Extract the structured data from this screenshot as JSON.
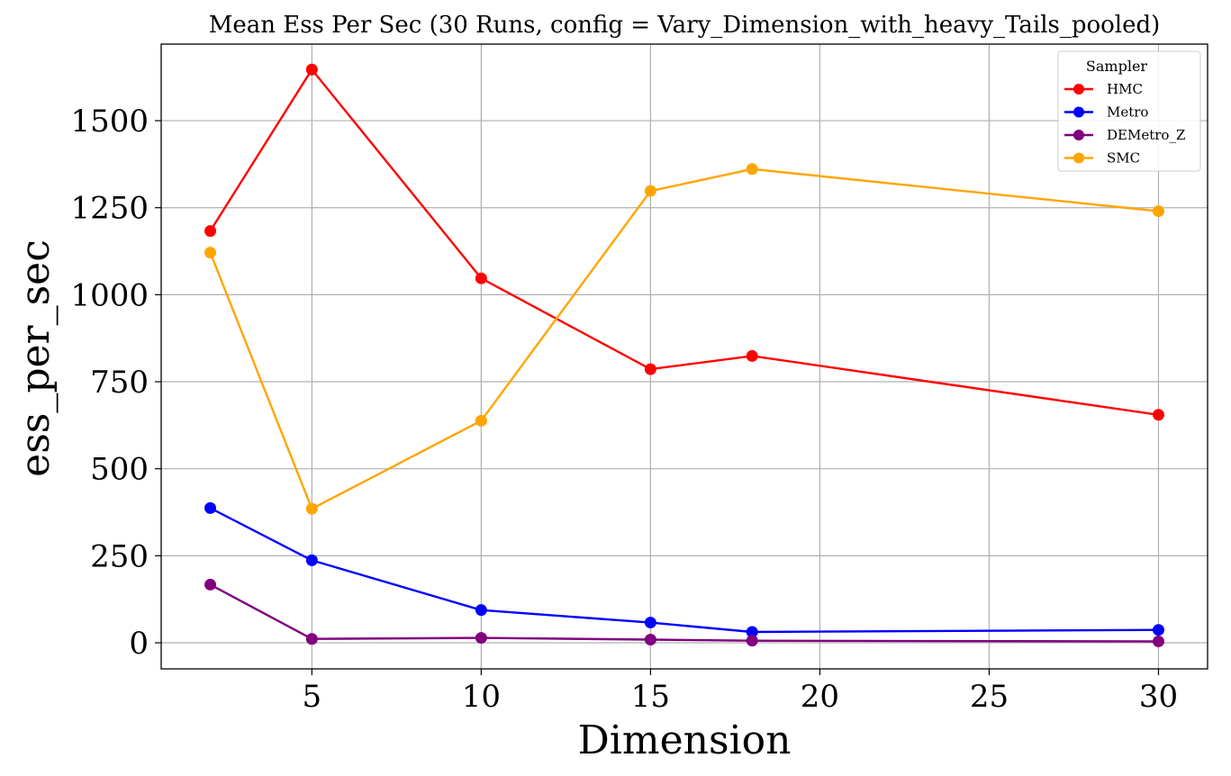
{
  "chart_data": {
    "type": "line",
    "title": "Mean Ess Per Sec (30 Runs, config = Vary_Dimension_with_heavy_Tails_pooled)",
    "xlabel": "Dimension",
    "ylabel": "ess_per_sec",
    "x": [
      2,
      5,
      10,
      15,
      18,
      30
    ],
    "xlim": [
      0.55,
      31.45
    ],
    "ylim": [
      -75,
      1720
    ],
    "xticks": [
      5,
      10,
      15,
      20,
      25,
      30
    ],
    "yticks": [
      0,
      250,
      500,
      750,
      1000,
      1250,
      1500
    ],
    "grid": true,
    "legend": {
      "title": "Sampler",
      "placement": "top-right"
    },
    "series": [
      {
        "name": "HMC",
        "color": "#ff0000",
        "values": [
          1183,
          1647,
          1047,
          786,
          824,
          655
        ]
      },
      {
        "name": "Metro",
        "color": "#0000ff",
        "values": [
          387,
          237,
          94,
          58,
          31,
          37
        ]
      },
      {
        "name": "DEMetro_Z",
        "color": "#800080",
        "values": [
          167,
          11,
          14,
          9,
          6,
          4
        ]
      },
      {
        "name": "SMC",
        "color": "#ffa500",
        "values": [
          1121,
          385,
          638,
          1298,
          1361,
          1240
        ]
      }
    ]
  }
}
